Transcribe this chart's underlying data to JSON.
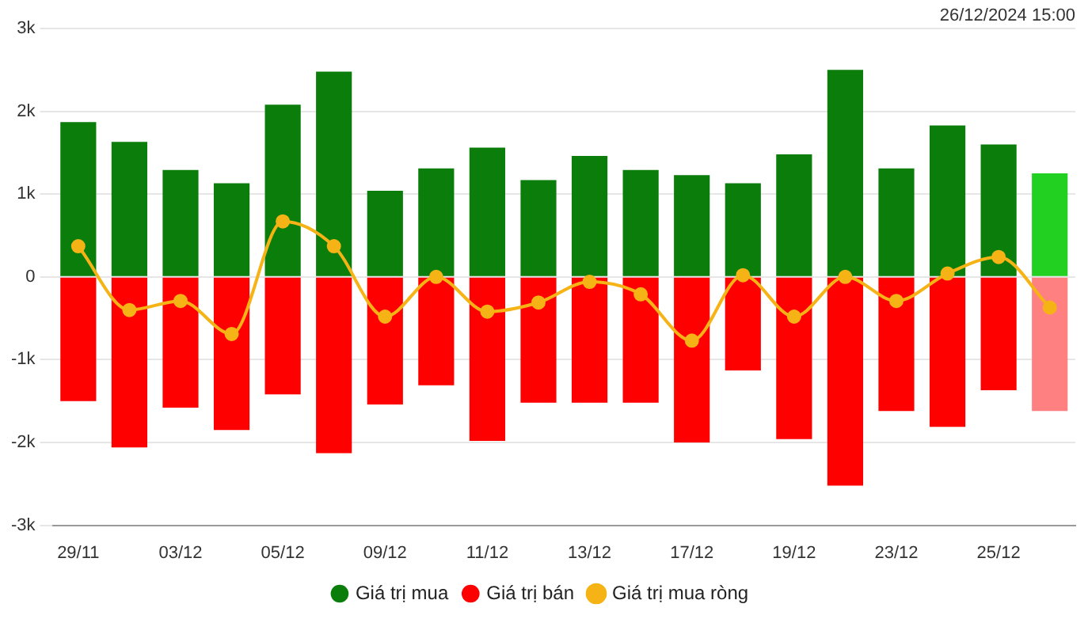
{
  "chart_data": {
    "type": "bar",
    "stacked": true,
    "grid": "y",
    "legend": "bottom",
    "categories": [
      "29/11",
      null,
      "03/12",
      null,
      "05/12",
      null,
      "09/12",
      null,
      "11/12",
      null,
      "13/12",
      null,
      "17/12",
      null,
      "19/12",
      null,
      "23/12",
      null,
      "25/12",
      null
    ],
    "ylim": [
      -3,
      3
    ],
    "yticks": [
      {
        "value": -3,
        "label": "-3k"
      },
      {
        "value": -2,
        "label": "-2k"
      },
      {
        "value": -1,
        "label": "-1k"
      },
      0,
      {
        "value": 1,
        "label": "1k"
      },
      {
        "value": 2,
        "label": "2k"
      },
      {
        "value": 3,
        "label": "3k"
      }
    ],
    "annotations": [
      "26/12/2024 15:00"
    ],
    "series": [
      {
        "name": "Giá trị mua",
        "color": "#0a7d0a",
        "colors": [
          "#0a7d0a",
          "#0a7d0a",
          "#0a7d0a",
          "#0a7d0a",
          "#0a7d0a",
          "#0a7d0a",
          "#0a7d0a",
          "#0a7d0a",
          "#0a7d0a",
          "#0a7d0a",
          "#0a7d0a",
          "#0a7d0a",
          "#0a7d0a",
          "#0a7d0a",
          "#0a7d0a",
          "#0a7d0a",
          "#0a7d0a",
          "#0a7d0a",
          "#0a7d0a",
          "#22d022"
        ],
        "values": [
          1.87,
          1.63,
          1.29,
          1.13,
          2.08,
          2.48,
          1.04,
          1.31,
          1.56,
          1.17,
          1.46,
          1.29,
          1.23,
          1.13,
          1.48,
          2.5,
          1.31,
          1.83,
          1.6,
          1.25
        ]
      },
      {
        "name": "Giá trị bán",
        "color": "#ff0000",
        "colors": [
          "#ff0000",
          "#ff0000",
          "#ff0000",
          "#ff0000",
          "#ff0000",
          "#ff0000",
          "#ff0000",
          "#ff0000",
          "#ff0000",
          "#ff0000",
          "#ff0000",
          "#ff0000",
          "#ff0000",
          "#ff0000",
          "#ff0000",
          "#ff0000",
          "#ff0000",
          "#ff0000",
          "#ff0000",
          "#ff8080"
        ],
        "values": [
          -1.5,
          -2.06,
          -1.58,
          -1.85,
          -1.42,
          -2.13,
          -1.54,
          -1.31,
          -1.98,
          -1.52,
          -1.52,
          -1.52,
          -2.0,
          -1.13,
          -1.96,
          -2.52,
          -1.62,
          -1.81,
          -1.37,
          -1.62
        ]
      },
      {
        "name": "Giá trị mua ròng",
        "type": "line",
        "marker": "circle",
        "color": "#f5b316",
        "values": [
          0.37,
          -0.4,
          -0.29,
          -0.69,
          0.67,
          0.37,
          -0.48,
          0.0,
          -0.42,
          -0.31,
          -0.06,
          -0.21,
          -0.77,
          0.02,
          -0.48,
          0.0,
          -0.29,
          0.04,
          0.24,
          -0.37
        ]
      }
    ]
  }
}
